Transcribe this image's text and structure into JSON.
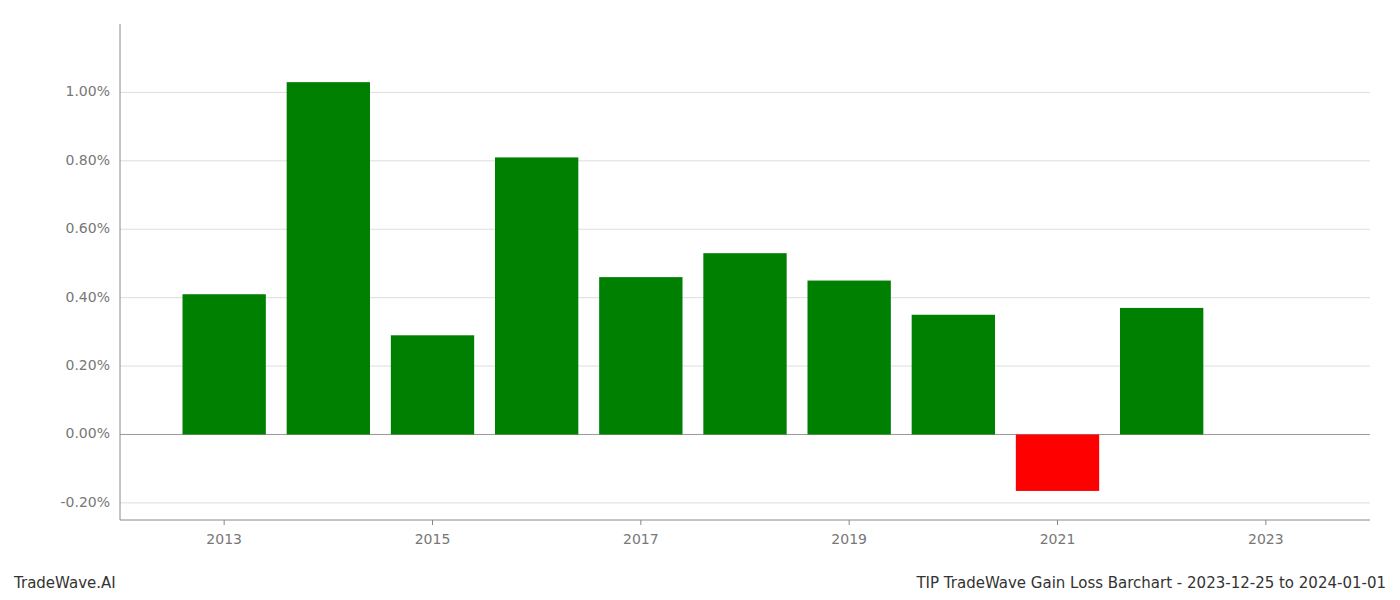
{
  "chart_data": {
    "type": "bar",
    "title": "TIP TradeWave Gain Loss Barchart - 2023-12-25 to 2024-01-01",
    "annotations": [
      "TradeWave.AI"
    ],
    "x": [
      2013,
      2014,
      2015,
      2016,
      2017,
      2018,
      2019,
      2020,
      2021,
      2022
    ],
    "values": [
      0.0041,
      0.0103,
      0.0029,
      0.0081,
      0.0046,
      0.0053,
      0.0045,
      0.0035,
      -0.00165,
      0.0037
    ],
    "colors": [
      "#008000",
      "#008000",
      "#008000",
      "#008000",
      "#008000",
      "#008000",
      "#008000",
      "#008000",
      "#ff0000",
      "#008000"
    ],
    "xlim": [
      2012.0,
      2024.0
    ],
    "xticks": [
      2013,
      2015,
      2017,
      2019,
      2021,
      2023
    ],
    "ylim": [
      -0.0025,
      0.012
    ],
    "yticks": [
      {
        "value": -0.002,
        "label": "-0.20%"
      },
      {
        "value": 0.0,
        "label": "0.00%"
      },
      {
        "value": 0.002,
        "label": "0.20%"
      },
      {
        "value": 0.004,
        "label": "0.40%"
      },
      {
        "value": 0.006,
        "label": "0.60%"
      },
      {
        "value": 0.008,
        "label": "0.80%"
      },
      {
        "value": 0.01,
        "label": "1.00%"
      }
    ],
    "grid": true
  }
}
